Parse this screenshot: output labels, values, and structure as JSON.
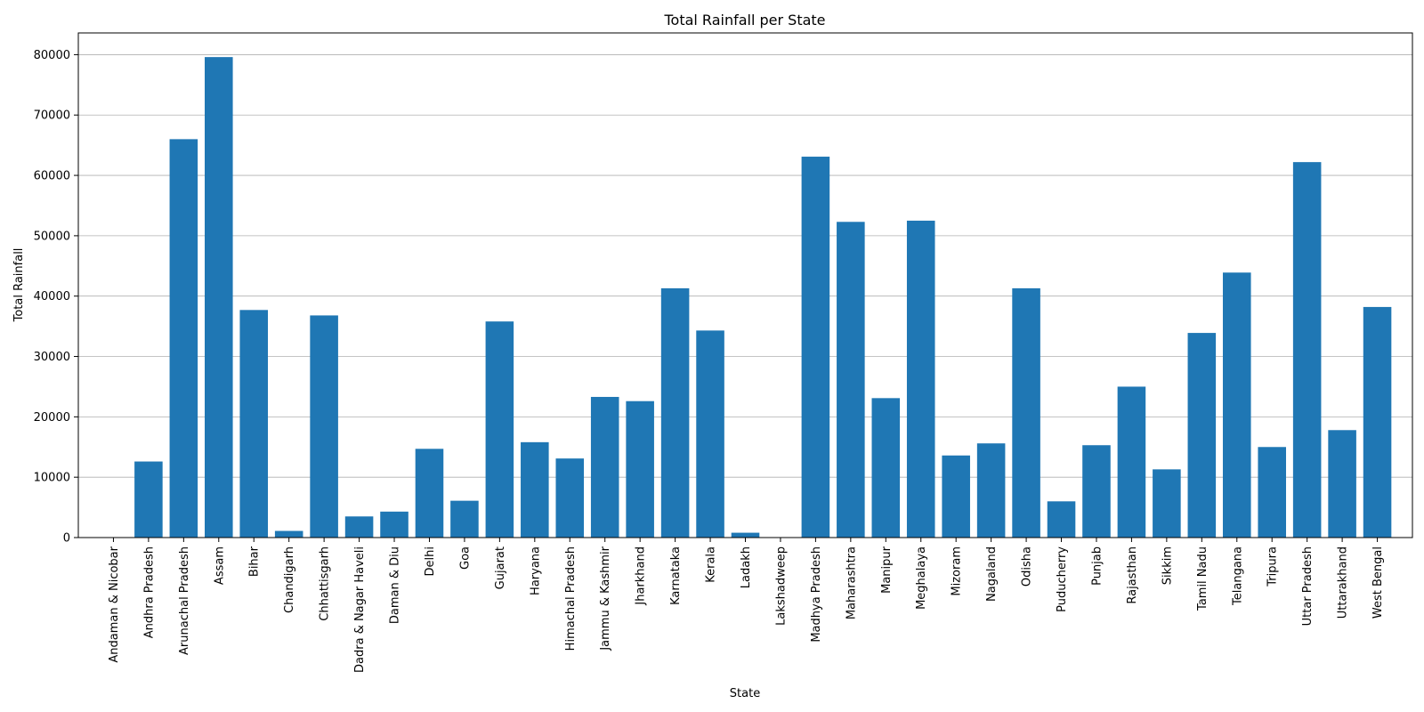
{
  "chart_data": {
    "type": "bar",
    "title": "Total Rainfall per State",
    "xlabel": "State",
    "ylabel": "Total Rainfall",
    "ylim": [
      0,
      83600
    ],
    "yticks": [
      0,
      10000,
      20000,
      30000,
      40000,
      50000,
      60000,
      70000,
      80000
    ],
    "ytick_labels": [
      "0",
      "10000",
      "20000",
      "30000",
      "40000",
      "50000",
      "60000",
      "70000",
      "80000"
    ],
    "grid": "y",
    "bar_color": "#1f77b4",
    "categories": [
      "Andaman & Nicobar",
      "Andhra Pradesh",
      "Arunachal Pradesh",
      "Assam",
      "Bihar",
      "Chandigarh",
      "Chhattisgarh",
      "Dadra & Nagar Haveli",
      "Daman & Diu",
      "Delhi",
      "Goa",
      "Gujarat",
      "Haryana",
      "Himachal Pradesh",
      "Jammu & Kashmir",
      "Jharkhand",
      "Karnataka",
      "Kerala",
      "Ladakh",
      "Lakshadweep",
      "Madhya Pradesh",
      "Maharashtra",
      "Manipur",
      "Meghalaya",
      "Mizoram",
      "Nagaland",
      "Odisha",
      "Puducherry",
      "Punjab",
      "Rajasthan",
      "Sikkim",
      "Tamil Nadu",
      "Telangana",
      "Tripura",
      "Uttar Pradesh",
      "Uttarakhand",
      "West Bengal"
    ],
    "values": [
      0,
      12600,
      66000,
      79600,
      37700,
      1100,
      36800,
      3500,
      4300,
      14700,
      6100,
      35800,
      15800,
      13100,
      23300,
      22600,
      41300,
      34300,
      800,
      0,
      63100,
      52300,
      23100,
      52500,
      13600,
      15600,
      41300,
      6000,
      15300,
      25000,
      11300,
      33900,
      43900,
      15000,
      62200,
      17800,
      38200
    ]
  }
}
